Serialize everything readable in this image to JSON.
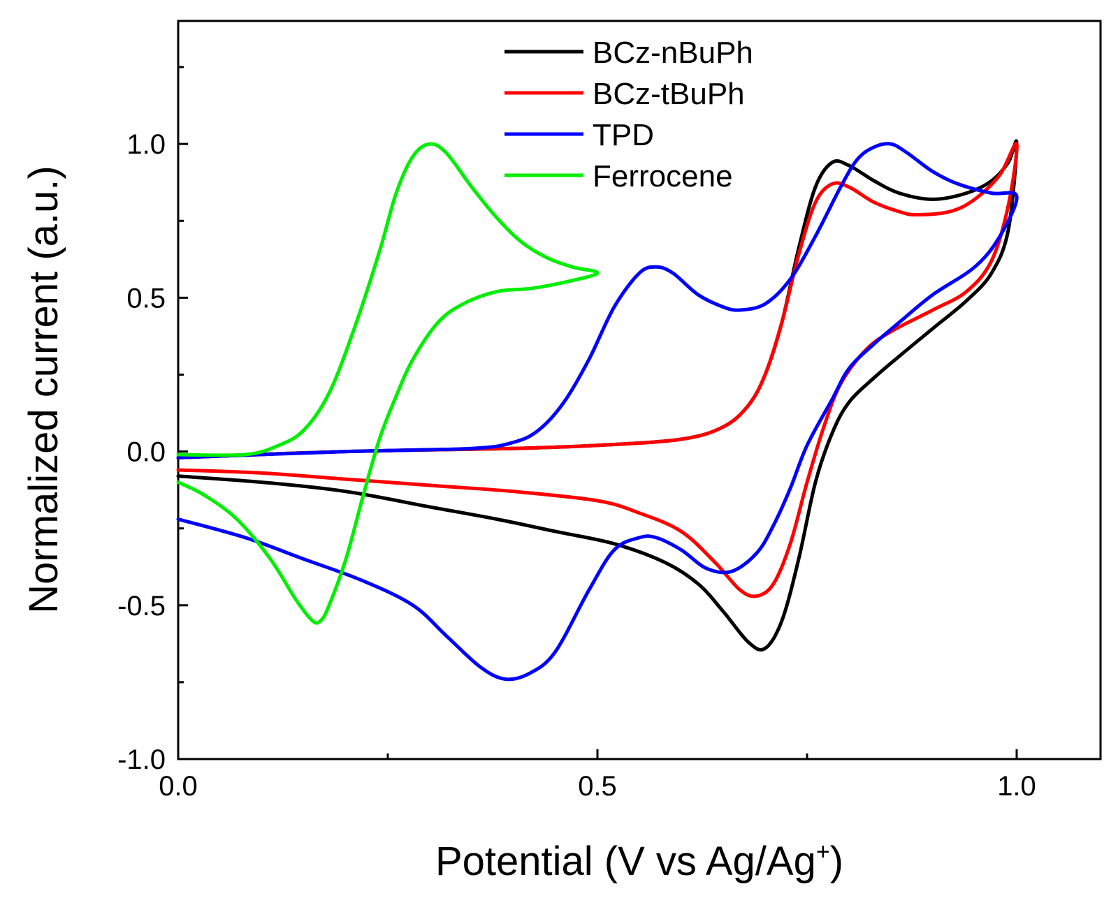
{
  "chart_data": {
    "type": "line",
    "title": "",
    "xlabel_main": "Potential (V vs Ag/Ag",
    "xlabel_sup": "+",
    "xlabel_close": ")",
    "ylabel": "Normalized current (a.u.)",
    "xlim": [
      0.0,
      1.1
    ],
    "ylim": [
      -1.0,
      1.4
    ],
    "grid": false,
    "legend_position": "top-center",
    "x_ticks": [
      {
        "value": 0.0,
        "label": "0.0"
      },
      {
        "value": 0.5,
        "label": "0.5"
      },
      {
        "value": 1.0,
        "label": "1.0"
      }
    ],
    "x_minor_ticks": [
      0.25,
      0.75
    ],
    "y_ticks": [
      {
        "value": -1.0,
        "label": "-1.0"
      },
      {
        "value": -0.5,
        "label": "-0.5"
      },
      {
        "value": 0.0,
        "label": "0.0"
      },
      {
        "value": 0.5,
        "label": "0.5"
      },
      {
        "value": 1.0,
        "label": "1.0"
      }
    ],
    "y_minor_ticks": [
      -0.75,
      -0.25,
      0.25,
      0.75,
      1.25
    ],
    "series": [
      {
        "name": "BCz-nBuPh",
        "color": "#000000",
        "points": [
          [
            0.0,
            -0.02
          ],
          [
            0.2,
            0.0
          ],
          [
            0.4,
            0.01
          ],
          [
            0.5,
            0.02
          ],
          [
            0.6,
            0.04
          ],
          [
            0.65,
            0.08
          ],
          [
            0.68,
            0.15
          ],
          [
            0.7,
            0.25
          ],
          [
            0.72,
            0.42
          ],
          [
            0.74,
            0.66
          ],
          [
            0.76,
            0.86
          ],
          [
            0.78,
            0.94
          ],
          [
            0.8,
            0.93
          ],
          [
            0.83,
            0.88
          ],
          [
            0.86,
            0.84
          ],
          [
            0.9,
            0.82
          ],
          [
            0.94,
            0.84
          ],
          [
            0.97,
            0.88
          ],
          [
            0.99,
            0.94
          ],
          [
            1.0,
            1.0
          ],
          [
            0.99,
            0.72
          ],
          [
            0.97,
            0.58
          ],
          [
            0.94,
            0.49
          ],
          [
            0.9,
            0.4
          ],
          [
            0.86,
            0.31
          ],
          [
            0.83,
            0.24
          ],
          [
            0.8,
            0.16
          ],
          [
            0.78,
            0.06
          ],
          [
            0.76,
            -0.1
          ],
          [
            0.74,
            -0.35
          ],
          [
            0.72,
            -0.55
          ],
          [
            0.7,
            -0.64
          ],
          [
            0.68,
            -0.62
          ],
          [
            0.65,
            -0.52
          ],
          [
            0.62,
            -0.43
          ],
          [
            0.58,
            -0.36
          ],
          [
            0.52,
            -0.3
          ],
          [
            0.45,
            -0.26
          ],
          [
            0.38,
            -0.22
          ],
          [
            0.3,
            -0.18
          ],
          [
            0.2,
            -0.13
          ],
          [
            0.1,
            -0.1
          ],
          [
            0.0,
            -0.08
          ]
        ]
      },
      {
        "name": "BCz-tBuPh",
        "color": "#ff0000",
        "points": [
          [
            0.0,
            -0.02
          ],
          [
            0.2,
            0.0
          ],
          [
            0.4,
            0.01
          ],
          [
            0.5,
            0.02
          ],
          [
            0.6,
            0.04
          ],
          [
            0.65,
            0.08
          ],
          [
            0.68,
            0.15
          ],
          [
            0.7,
            0.25
          ],
          [
            0.72,
            0.42
          ],
          [
            0.74,
            0.64
          ],
          [
            0.76,
            0.81
          ],
          [
            0.78,
            0.87
          ],
          [
            0.8,
            0.86
          ],
          [
            0.83,
            0.81
          ],
          [
            0.86,
            0.78
          ],
          [
            0.88,
            0.77
          ],
          [
            0.92,
            0.78
          ],
          [
            0.95,
            0.82
          ],
          [
            0.98,
            0.9
          ],
          [
            1.0,
            1.0
          ],
          [
            0.99,
            0.8
          ],
          [
            0.97,
            0.62
          ],
          [
            0.94,
            0.52
          ],
          [
            0.9,
            0.46
          ],
          [
            0.85,
            0.39
          ],
          [
            0.82,
            0.33
          ],
          [
            0.79,
            0.22
          ],
          [
            0.77,
            0.08
          ],
          [
            0.75,
            -0.1
          ],
          [
            0.73,
            -0.3
          ],
          [
            0.71,
            -0.43
          ],
          [
            0.69,
            -0.47
          ],
          [
            0.67,
            -0.45
          ],
          [
            0.64,
            -0.36
          ],
          [
            0.6,
            -0.26
          ],
          [
            0.55,
            -0.2
          ],
          [
            0.5,
            -0.16
          ],
          [
            0.4,
            -0.13
          ],
          [
            0.3,
            -0.11
          ],
          [
            0.2,
            -0.09
          ],
          [
            0.1,
            -0.07
          ],
          [
            0.0,
            -0.06
          ]
        ]
      },
      {
        "name": "TPD",
        "color": "#0000ff",
        "points": [
          [
            0.0,
            -0.02
          ],
          [
            0.2,
            0.0
          ],
          [
            0.35,
            0.01
          ],
          [
            0.4,
            0.03
          ],
          [
            0.43,
            0.07
          ],
          [
            0.46,
            0.16
          ],
          [
            0.49,
            0.3
          ],
          [
            0.52,
            0.47
          ],
          [
            0.55,
            0.58
          ],
          [
            0.57,
            0.6
          ],
          [
            0.59,
            0.58
          ],
          [
            0.62,
            0.51
          ],
          [
            0.65,
            0.47
          ],
          [
            0.67,
            0.46
          ],
          [
            0.7,
            0.48
          ],
          [
            0.73,
            0.56
          ],
          [
            0.76,
            0.7
          ],
          [
            0.79,
            0.86
          ],
          [
            0.81,
            0.95
          ],
          [
            0.83,
            0.99
          ],
          [
            0.85,
            1.0
          ],
          [
            0.87,
            0.97
          ],
          [
            0.9,
            0.91
          ],
          [
            0.93,
            0.87
          ],
          [
            0.97,
            0.84
          ],
          [
            1.0,
            0.83
          ],
          [
            0.98,
            0.7
          ],
          [
            0.95,
            0.6
          ],
          [
            0.9,
            0.51
          ],
          [
            0.86,
            0.42
          ],
          [
            0.83,
            0.35
          ],
          [
            0.8,
            0.27
          ],
          [
            0.78,
            0.17
          ],
          [
            0.75,
            0.02
          ],
          [
            0.73,
            -0.12
          ],
          [
            0.71,
            -0.24
          ],
          [
            0.69,
            -0.33
          ],
          [
            0.66,
            -0.39
          ],
          [
            0.63,
            -0.38
          ],
          [
            0.6,
            -0.32
          ],
          [
            0.57,
            -0.28
          ],
          [
            0.55,
            -0.28
          ],
          [
            0.52,
            -0.32
          ],
          [
            0.49,
            -0.45
          ],
          [
            0.45,
            -0.65
          ],
          [
            0.42,
            -0.72
          ],
          [
            0.39,
            -0.74
          ],
          [
            0.36,
            -0.7
          ],
          [
            0.32,
            -0.6
          ],
          [
            0.28,
            -0.5
          ],
          [
            0.22,
            -0.42
          ],
          [
            0.15,
            -0.35
          ],
          [
            0.08,
            -0.28
          ],
          [
            0.0,
            -0.22
          ]
        ]
      },
      {
        "name": "Ferrocene",
        "color": "#00ee00",
        "points": [
          [
            0.0,
            -0.01
          ],
          [
            0.08,
            -0.01
          ],
          [
            0.12,
            0.02
          ],
          [
            0.15,
            0.07
          ],
          [
            0.18,
            0.19
          ],
          [
            0.21,
            0.4
          ],
          [
            0.24,
            0.65
          ],
          [
            0.26,
            0.84
          ],
          [
            0.28,
            0.96
          ],
          [
            0.3,
            1.0
          ],
          [
            0.32,
            0.97
          ],
          [
            0.35,
            0.86
          ],
          [
            0.38,
            0.76
          ],
          [
            0.41,
            0.68
          ],
          [
            0.44,
            0.63
          ],
          [
            0.47,
            0.6
          ],
          [
            0.5,
            0.58
          ],
          [
            0.46,
            0.55
          ],
          [
            0.42,
            0.53
          ],
          [
            0.38,
            0.52
          ],
          [
            0.34,
            0.48
          ],
          [
            0.31,
            0.42
          ],
          [
            0.28,
            0.3
          ],
          [
            0.26,
            0.18
          ],
          [
            0.24,
            0.04
          ],
          [
            0.22,
            -0.15
          ],
          [
            0.2,
            -0.35
          ],
          [
            0.18,
            -0.5
          ],
          [
            0.17,
            -0.55
          ],
          [
            0.16,
            -0.55
          ],
          [
            0.14,
            -0.48
          ],
          [
            0.11,
            -0.35
          ],
          [
            0.07,
            -0.22
          ],
          [
            0.03,
            -0.14
          ],
          [
            0.0,
            -0.1
          ]
        ]
      }
    ]
  }
}
